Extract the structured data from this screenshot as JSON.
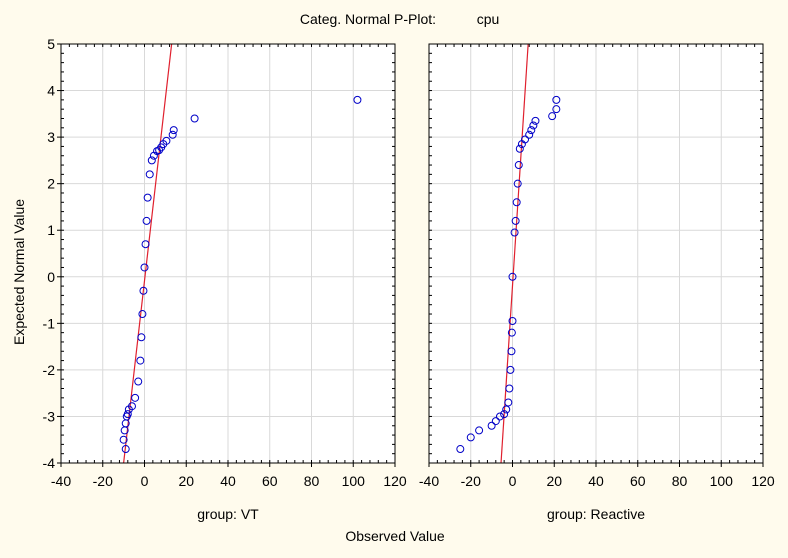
{
  "chart_data": {
    "type": "scatter",
    "title": "Categ. Normal P-Plot:",
    "variable": "cpu",
    "xlabel": "Observed Value",
    "ylabel": "Expected Normal Value",
    "xlim": [
      -40,
      120
    ],
    "ylim": [
      -4,
      5
    ],
    "x_ticks": [
      -40,
      -20,
      0,
      20,
      40,
      60,
      80,
      100,
      120
    ],
    "y_ticks": [
      -4,
      -3,
      -2,
      -1,
      0,
      1,
      2,
      3,
      4,
      5
    ],
    "grid": true,
    "marker_color": "#0000c8",
    "line_color": "#e0202e",
    "panels": [
      {
        "label": "group: VT",
        "reference_line": [
          [
            -10,
            -4
          ],
          [
            13,
            5
          ]
        ],
        "points": [
          [
            -9,
            -3.7
          ],
          [
            -10,
            -3.5
          ],
          [
            -9.5,
            -3.3
          ],
          [
            -9,
            -3.15
          ],
          [
            -8.5,
            -3.0
          ],
          [
            -8,
            -2.95
          ],
          [
            -7.5,
            -2.85
          ],
          [
            -6,
            -2.78
          ],
          [
            -4.5,
            -2.6
          ],
          [
            -3,
            -2.25
          ],
          [
            -2,
            -1.8
          ],
          [
            -1.5,
            -1.3
          ],
          [
            -1,
            -0.8
          ],
          [
            -0.5,
            -0.3
          ],
          [
            0,
            0.2
          ],
          [
            0.5,
            0.7
          ],
          [
            1,
            1.2
          ],
          [
            1.5,
            1.7
          ],
          [
            2.5,
            2.2
          ],
          [
            3.5,
            2.5
          ],
          [
            4.5,
            2.6
          ],
          [
            6,
            2.7
          ],
          [
            7,
            2.72
          ],
          [
            8,
            2.78
          ],
          [
            9,
            2.85
          ],
          [
            10.5,
            2.92
          ],
          [
            13.5,
            3.05
          ],
          [
            14,
            3.15
          ],
          [
            24,
            3.4
          ],
          [
            102,
            3.8
          ]
        ]
      },
      {
        "label": "group: Reactive",
        "reference_line": [
          [
            -5.5,
            -4
          ],
          [
            7.5,
            5
          ]
        ],
        "points": [
          [
            -25,
            -3.7
          ],
          [
            -20,
            -3.45
          ],
          [
            -16,
            -3.3
          ],
          [
            -10,
            -3.2
          ],
          [
            -8,
            -3.1
          ],
          [
            -6,
            -3.0
          ],
          [
            -4,
            -2.95
          ],
          [
            -3,
            -2.85
          ],
          [
            -2,
            -2.7
          ],
          [
            -1.5,
            -2.4
          ],
          [
            -1,
            -2.0
          ],
          [
            -0.5,
            -1.6
          ],
          [
            -0.3,
            -1.2
          ],
          [
            0,
            -0.95
          ],
          [
            0,
            0
          ],
          [
            1,
            0.95
          ],
          [
            1.5,
            1.2
          ],
          [
            2,
            1.6
          ],
          [
            2.5,
            2.0
          ],
          [
            3,
            2.4
          ],
          [
            3.5,
            2.75
          ],
          [
            4.5,
            2.85
          ],
          [
            6,
            2.95
          ],
          [
            8,
            3.05
          ],
          [
            9,
            3.15
          ],
          [
            10,
            3.25
          ],
          [
            11,
            3.35
          ],
          [
            19,
            3.45
          ],
          [
            21,
            3.6
          ],
          [
            21,
            3.8
          ]
        ]
      }
    ]
  }
}
